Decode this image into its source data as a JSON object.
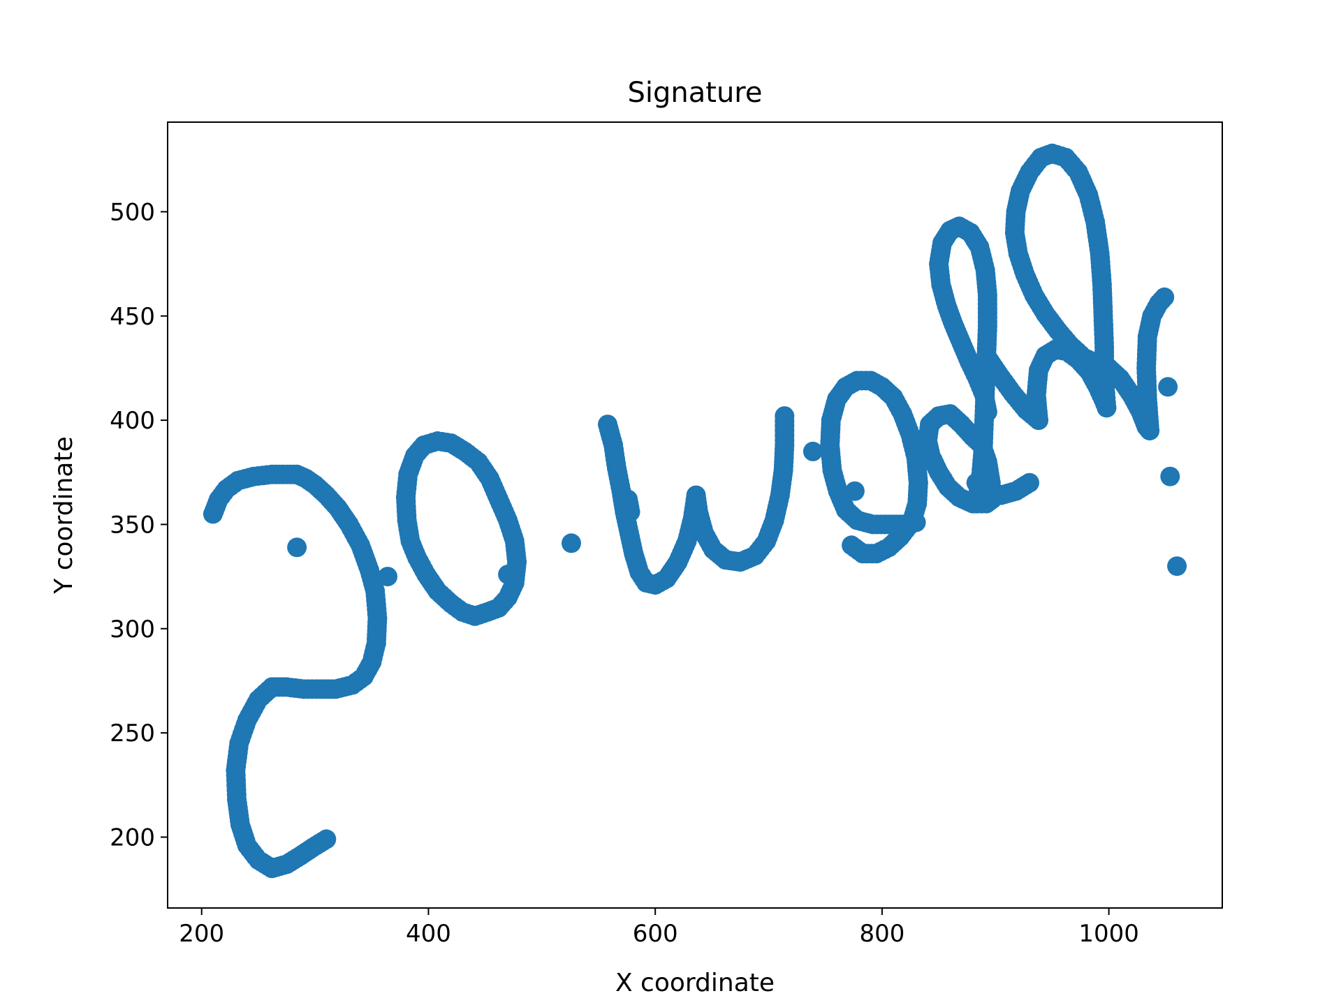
{
  "chart_data": {
    "type": "scatter",
    "title": "Signature",
    "xlabel": "X coordinate",
    "ylabel": "Y coordinate",
    "xlim": [
      170,
      1100
    ],
    "ylim": [
      166,
      543
    ],
    "xticks": [
      200,
      400,
      600,
      800,
      1000
    ],
    "yticks": [
      200,
      250,
      300,
      350,
      400,
      450,
      500
    ],
    "grid": false,
    "marker_color": "#1f77b4",
    "strokes": [
      [
        [
          210,
          355
        ],
        [
          215,
          362
        ],
        [
          222,
          367
        ],
        [
          232,
          371
        ],
        [
          246,
          373
        ],
        [
          262,
          374
        ],
        [
          275,
          374
        ],
        [
          284,
          374
        ],
        [
          292,
          372
        ],
        [
          300,
          369
        ],
        [
          310,
          364
        ],
        [
          320,
          358
        ],
        [
          330,
          350
        ],
        [
          340,
          340
        ],
        [
          348,
          328
        ],
        [
          353,
          318
        ],
        [
          355,
          305
        ],
        [
          354,
          293
        ],
        [
          350,
          284
        ],
        [
          343,
          277
        ],
        [
          333,
          273
        ],
        [
          318,
          271
        ],
        [
          305,
          271
        ],
        [
          290,
          271
        ],
        [
          275,
          272
        ],
        [
          262,
          272
        ],
        [
          250,
          266
        ],
        [
          240,
          256
        ],
        [
          233,
          245
        ],
        [
          230,
          232
        ],
        [
          231,
          218
        ],
        [
          234,
          206
        ],
        [
          240,
          196
        ],
        [
          250,
          189
        ],
        [
          262,
          185
        ],
        [
          275,
          187
        ],
        [
          287,
          191
        ],
        [
          298,
          195
        ],
        [
          310,
          199
        ]
      ],
      [
        [
          284,
          339
        ]
      ],
      [
        [
          364,
          325
        ]
      ],
      [
        [
          380,
          363
        ],
        [
          382,
          374
        ],
        [
          388,
          383
        ],
        [
          396,
          388
        ],
        [
          408,
          390
        ],
        [
          420,
          389
        ],
        [
          432,
          385
        ],
        [
          444,
          380
        ],
        [
          454,
          372
        ],
        [
          462,
          362
        ],
        [
          470,
          352
        ],
        [
          476,
          342
        ],
        [
          478,
          332
        ],
        [
          476,
          322
        ],
        [
          470,
          315
        ],
        [
          462,
          310
        ],
        [
          452,
          308
        ],
        [
          441,
          306
        ],
        [
          430,
          308
        ],
        [
          420,
          312
        ],
        [
          408,
          318
        ],
        [
          398,
          326
        ],
        [
          390,
          334
        ],
        [
          384,
          342
        ],
        [
          381,
          352
        ],
        [
          380,
          363
        ]
      ],
      [
        [
          470,
          326
        ]
      ],
      [
        [
          526,
          341
        ]
      ],
      [
        [
          558,
          398
        ],
        [
          563,
          388
        ],
        [
          566,
          377
        ],
        [
          570,
          366
        ],
        [
          573,
          356
        ],
        [
          577,
          346
        ],
        [
          581,
          336
        ],
        [
          586,
          327
        ],
        [
          592,
          322
        ],
        [
          600,
          321
        ],
        [
          610,
          324
        ],
        [
          620,
          332
        ],
        [
          628,
          342
        ],
        [
          633,
          353
        ],
        [
          636,
          364
        ],
        [
          638,
          356
        ],
        [
          643,
          346
        ],
        [
          651,
          338
        ],
        [
          662,
          333
        ],
        [
          675,
          332
        ],
        [
          688,
          335
        ],
        [
          698,
          342
        ],
        [
          705,
          352
        ],
        [
          710,
          364
        ],
        [
          713,
          376
        ],
        [
          714,
          388
        ],
        [
          714,
          402
        ]
      ],
      [
        [
          578,
          356
        ],
        [
          576,
          362
        ]
      ],
      [
        [
          776,
          366
        ]
      ],
      [
        [
          773,
          340
        ],
        [
          783,
          336
        ],
        [
          795,
          336
        ],
        [
          806,
          339
        ],
        [
          816,
          344
        ],
        [
          826,
          351
        ],
        [
          831,
          360
        ],
        [
          832,
          370
        ],
        [
          830,
          382
        ],
        [
          825,
          393
        ],
        [
          818,
          403
        ],
        [
          810,
          411
        ],
        [
          800,
          416
        ],
        [
          790,
          419
        ],
        [
          778,
          419
        ],
        [
          768,
          416
        ],
        [
          760,
          410
        ],
        [
          755,
          400
        ],
        [
          754,
          388
        ],
        [
          756,
          376
        ],
        [
          761,
          366
        ],
        [
          768,
          357
        ],
        [
          778,
          352
        ],
        [
          792,
          350
        ],
        [
          806,
          350
        ],
        [
          819,
          350
        ],
        [
          830,
          351
        ]
      ],
      [
        [
          739,
          385
        ]
      ],
      [
        [
          840,
          390
        ],
        [
          842,
          398
        ],
        [
          850,
          402
        ],
        [
          860,
          403
        ],
        [
          870,
          398
        ],
        [
          880,
          392
        ],
        [
          888,
          388
        ],
        [
          893,
          380
        ],
        [
          896,
          370
        ],
        [
          897,
          362
        ],
        [
          892,
          360
        ],
        [
          880,
          360
        ],
        [
          868,
          363
        ],
        [
          858,
          368
        ],
        [
          850,
          375
        ],
        [
          843,
          383
        ],
        [
          840,
          390
        ]
      ],
      [
        [
          883,
          370
        ],
        [
          892,
          366
        ],
        [
          905,
          364
        ],
        [
          918,
          366
        ],
        [
          930,
          370
        ]
      ],
      [
        [
          883,
          360
        ],
        [
          887,
          372
        ],
        [
          889,
          385
        ],
        [
          890,
          400
        ],
        [
          891,
          415
        ],
        [
          892,
          430
        ],
        [
          893,
          445
        ],
        [
          893,
          460
        ],
        [
          891,
          472
        ],
        [
          886,
          483
        ],
        [
          878,
          490
        ],
        [
          868,
          493
        ],
        [
          860,
          491
        ],
        [
          853,
          485
        ],
        [
          850,
          475
        ],
        [
          852,
          465
        ],
        [
          857,
          455
        ],
        [
          863,
          446
        ],
        [
          870,
          437
        ],
        [
          877,
          428
        ],
        [
          884,
          420
        ],
        [
          890,
          412
        ],
        [
          893,
          404
        ]
      ],
      [
        [
          893,
          430
        ],
        [
          903,
          422
        ],
        [
          915,
          413
        ],
        [
          927,
          405
        ],
        [
          938,
          400
        ]
      ],
      [
        [
          938,
          400
        ],
        [
          936,
          412
        ],
        [
          938,
          424
        ],
        [
          944,
          431
        ],
        [
          953,
          434
        ],
        [
          963,
          433
        ],
        [
          973,
          429
        ],
        [
          983,
          423
        ],
        [
          990,
          416
        ],
        [
          995,
          410
        ],
        [
          998,
          406
        ]
      ],
      [
        [
          998,
          406
        ],
        [
          996,
          420
        ],
        [
          996,
          435
        ],
        [
          995,
          450
        ],
        [
          994,
          465
        ],
        [
          992,
          480
        ],
        [
          988,
          495
        ],
        [
          982,
          508
        ],
        [
          973,
          519
        ],
        [
          962,
          526
        ],
        [
          950,
          528
        ],
        [
          940,
          526
        ],
        [
          930,
          519
        ],
        [
          922,
          510
        ],
        [
          918,
          500
        ],
        [
          917,
          490
        ],
        [
          920,
          480
        ],
        [
          926,
          470
        ],
        [
          934,
          460
        ],
        [
          944,
          451
        ],
        [
          955,
          443
        ],
        [
          966,
          436
        ],
        [
          978,
          430
        ],
        [
          990,
          427
        ],
        [
          1000,
          425
        ]
      ],
      [
        [
          1000,
          425
        ],
        [
          1010,
          420
        ],
        [
          1020,
          412
        ],
        [
          1028,
          404
        ],
        [
          1033,
          397
        ],
        [
          1036,
          395
        ]
      ],
      [
        [
          1036,
          395
        ],
        [
          1034,
          410
        ],
        [
          1033,
          425
        ],
        [
          1034,
          440
        ],
        [
          1038,
          450
        ],
        [
          1044,
          456
        ],
        [
          1049,
          459
        ]
      ],
      [
        [
          1052,
          416
        ]
      ],
      [
        [
          1054,
          373
        ]
      ],
      [
        [
          1060,
          330
        ]
      ]
    ]
  }
}
